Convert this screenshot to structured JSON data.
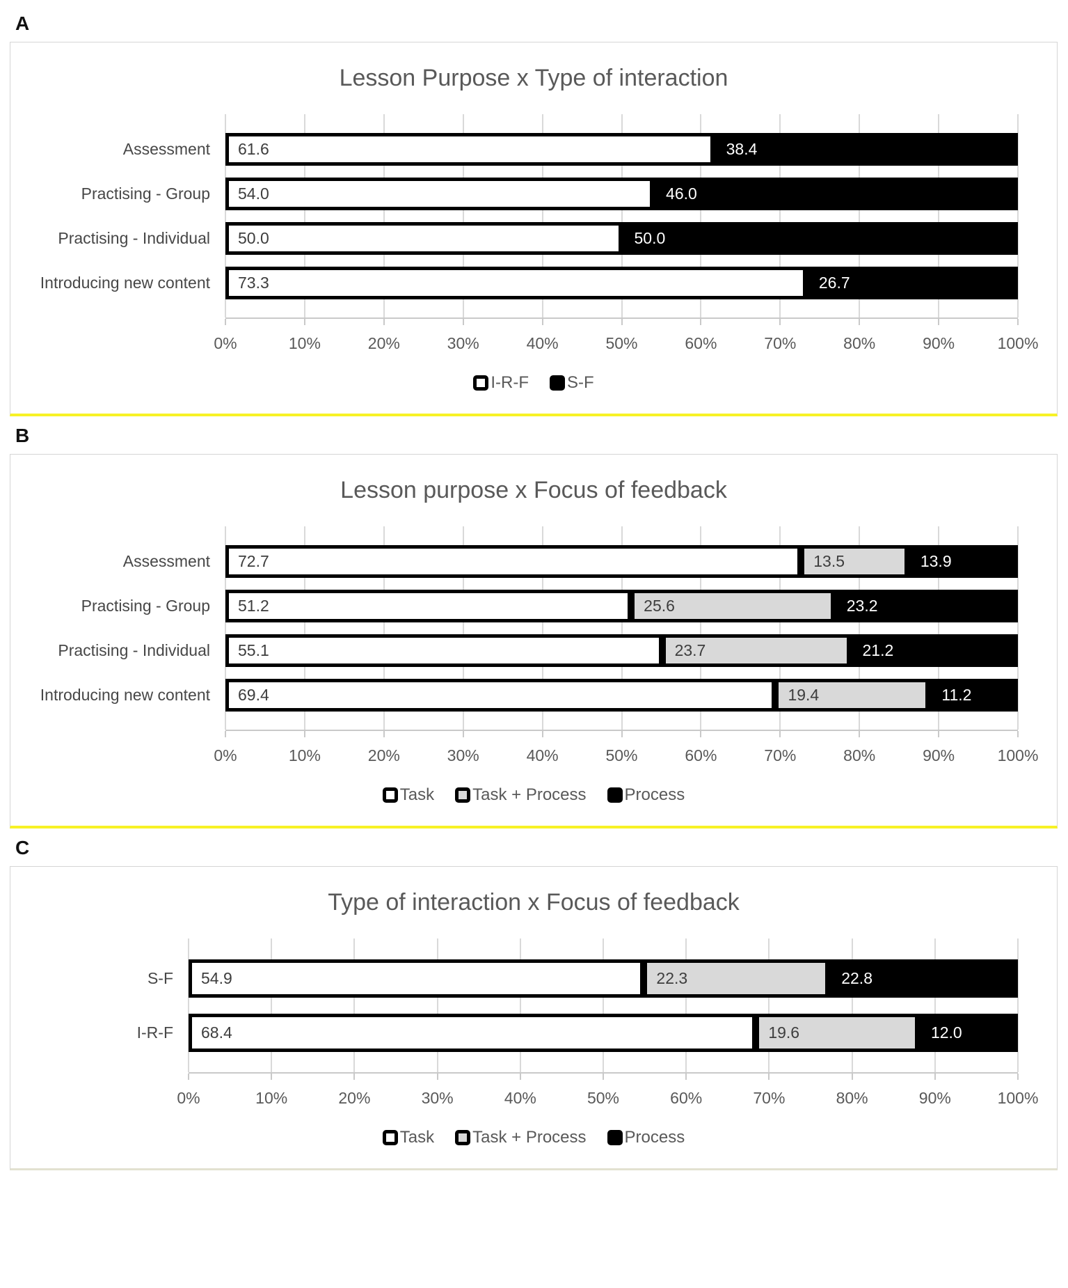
{
  "colors": {
    "series_white": "#FFFFFF",
    "series_gray": "#D9D9D9",
    "series_black": "#000000",
    "grid": "#D9D9D9",
    "axis_text": "#595959",
    "category_text": "#474747",
    "label_on_light": "#3D3D3D",
    "label_on_dark": "#FFFFFF",
    "panel_underline_ab": "#F7F225",
    "panel_underline_c": "#E2E1D0"
  },
  "chart_data": [
    {
      "type": "bar",
      "stacked": true,
      "orientation": "horizontal",
      "panel_label": "A",
      "title": "Lesson Purpose x Type of interaction",
      "categories": [
        "Assessment",
        "Practising - Group",
        "Practising - Individual",
        "Introducing new content"
      ],
      "series": [
        {
          "name": "I-R-F",
          "fill": "#FFFFFF",
          "values": [
            61.6,
            54.0,
            50.0,
            73.3
          ],
          "labels": [
            "61.6",
            "54.0",
            "50.0",
            "73.3"
          ]
        },
        {
          "name": "S-F",
          "fill": "#000000",
          "values": [
            38.4,
            46.0,
            50.0,
            26.7
          ],
          "labels": [
            "38.4",
            "46.0",
            "50.0",
            "26.7"
          ]
        }
      ],
      "xlim": [
        0,
        100
      ],
      "x_tick_labels": [
        "0%",
        "10%",
        "20%",
        "30%",
        "40%",
        "50%",
        "60%",
        "70%",
        "80%",
        "90%",
        "100%"
      ],
      "grid": true,
      "legend_position": "bottom"
    },
    {
      "type": "bar",
      "stacked": true,
      "orientation": "horizontal",
      "panel_label": "B",
      "title": "Lesson purpose x Focus of feedback",
      "categories": [
        "Assessment",
        "Practising - Group",
        "Practising - Individual",
        "Introducing new content"
      ],
      "series": [
        {
          "name": "Task",
          "fill": "#FFFFFF",
          "values": [
            72.7,
            51.2,
            55.1,
            69.4
          ],
          "labels": [
            "72.7",
            "51.2",
            "55.1",
            "69.4"
          ]
        },
        {
          "name": "Task + Process",
          "fill": "#D9D9D9",
          "values": [
            13.5,
            25.6,
            23.7,
            19.4
          ],
          "labels": [
            "13.5",
            "25.6",
            "23.7",
            "19.4"
          ]
        },
        {
          "name": "Process",
          "fill": "#000000",
          "values": [
            13.9,
            23.2,
            21.2,
            11.2
          ],
          "labels": [
            "13.9",
            "23.2",
            "21.2",
            "11.2"
          ]
        }
      ],
      "xlim": [
        0,
        100
      ],
      "x_tick_labels": [
        "0%",
        "10%",
        "20%",
        "30%",
        "40%",
        "50%",
        "60%",
        "70%",
        "80%",
        "90%",
        "100%"
      ],
      "grid": true,
      "legend_position": "bottom"
    },
    {
      "type": "bar",
      "stacked": true,
      "orientation": "horizontal",
      "panel_label": "C",
      "title": "Type of interaction x Focus of feedback",
      "categories": [
        "S-F",
        "I-R-F"
      ],
      "series": [
        {
          "name": "Task",
          "fill": "#FFFFFF",
          "values": [
            54.9,
            68.4
          ],
          "labels": [
            "54.9",
            "68.4"
          ]
        },
        {
          "name": "Task + Process",
          "fill": "#D9D9D9",
          "values": [
            22.3,
            19.6
          ],
          "labels": [
            "22.3",
            "19.6"
          ]
        },
        {
          "name": "Process",
          "fill": "#000000",
          "values": [
            22.8,
            12.0
          ],
          "labels": [
            "22.8",
            "12.0"
          ]
        }
      ],
      "xlim": [
        0,
        100
      ],
      "x_tick_labels": [
        "0%",
        "10%",
        "20%",
        "30%",
        "40%",
        "50%",
        "60%",
        "70%",
        "80%",
        "90%",
        "100%"
      ],
      "grid": true,
      "legend_position": "bottom"
    }
  ]
}
